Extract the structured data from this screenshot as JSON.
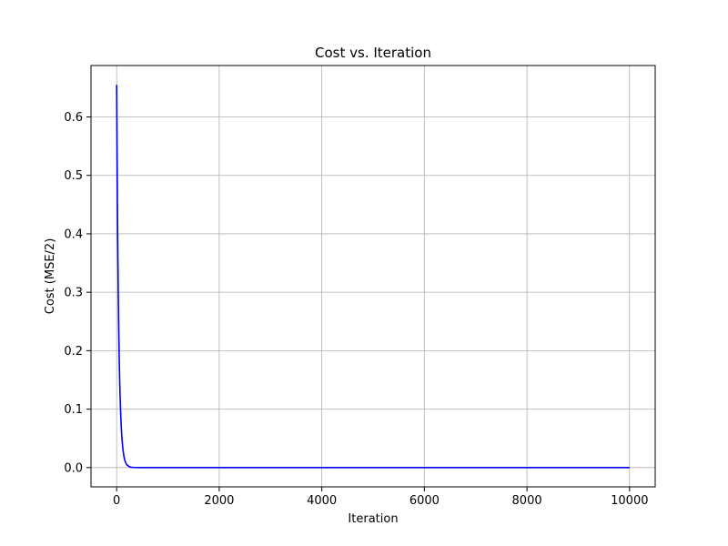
{
  "chart_data": {
    "type": "line",
    "title": "Cost vs. Iteration",
    "xlabel": "Iteration",
    "ylabel": "Cost (MSE/2)",
    "xlim": [
      -500,
      10500
    ],
    "ylim": [
      -0.033,
      0.688
    ],
    "x_ticks": [
      0,
      2000,
      4000,
      6000,
      8000,
      10000
    ],
    "x_tick_labels": [
      "0",
      "2000",
      "4000",
      "6000",
      "8000",
      "10000"
    ],
    "y_ticks": [
      0.0,
      0.1,
      0.2,
      0.3,
      0.4,
      0.5,
      0.6
    ],
    "y_tick_labels": [
      "0.0",
      "0.1",
      "0.2",
      "0.3",
      "0.4",
      "0.5",
      "0.6"
    ],
    "grid": true,
    "series": [
      {
        "color": "#0000ff",
        "x": [
          0,
          10,
          20,
          30,
          40,
          50,
          60,
          70,
          80,
          90,
          100,
          120,
          140,
          160,
          180,
          200,
          250,
          300,
          350,
          400,
          500,
          600,
          800,
          1000,
          2000,
          3000,
          4000,
          5000,
          6000,
          7000,
          8000,
          9000,
          10000
        ],
        "y": [
          0.655,
          0.51,
          0.397,
          0.309,
          0.241,
          0.187,
          0.146,
          0.114,
          0.089,
          0.069,
          0.054,
          0.033,
          0.02,
          0.012,
          0.0075,
          0.0045,
          0.0014,
          0.0004,
          0.0001,
          4e-05,
          0.0,
          0.0,
          0.0,
          0.0,
          0.0,
          0.0,
          0.0,
          0.0,
          0.0,
          0.0,
          0.0,
          0.0,
          0.0
        ]
      }
    ]
  }
}
